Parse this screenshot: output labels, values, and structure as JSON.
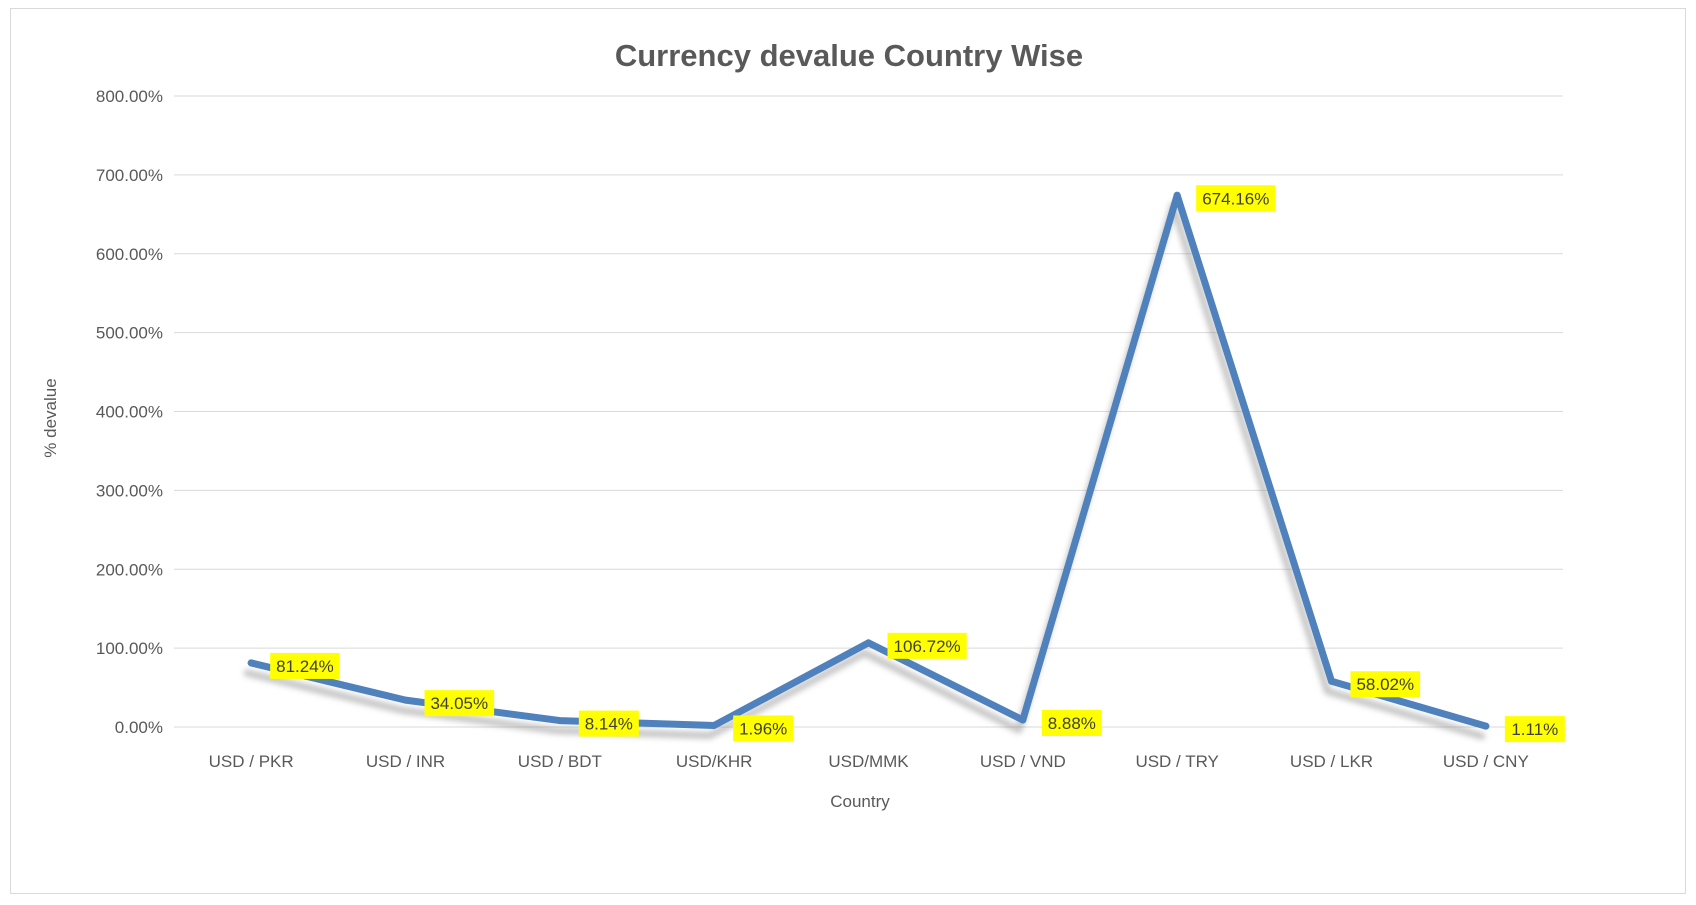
{
  "chart_data": {
    "type": "line",
    "title": "Currency devalue Country Wise",
    "xlabel": "Country",
    "ylabel": "% devalue",
    "categories": [
      "USD / PKR",
      "USD / INR",
      "USD / BDT",
      "USD/KHR",
      "USD/MMK",
      "USD / VND",
      "USD / TRY",
      "USD / LKR",
      "USD / CNY"
    ],
    "series": [
      {
        "values": [
          81.24,
          34.05,
          8.14,
          1.96,
          106.72,
          8.88,
          674.16,
          58.02,
          1.11
        ],
        "data_labels": [
          "81.24%",
          "34.05%",
          "8.14%",
          "1.96%",
          "106.72%",
          "8.88%",
          "674.16%",
          "58.02%",
          "1.11%"
        ]
      }
    ],
    "ylim": [
      0,
      800
    ],
    "yticks": [
      0,
      100,
      200,
      300,
      400,
      500,
      600,
      700,
      800
    ],
    "ytick_labels": [
      "0.00%",
      "100.00%",
      "200.00%",
      "300.00%",
      "400.00%",
      "500.00%",
      "600.00%",
      "700.00%",
      "800.00%"
    ],
    "grid": true,
    "legend": "none",
    "colors": {
      "line": "#4f81bd",
      "data_label_bg": "#ffff00",
      "gridline": "#d9d9d9",
      "text": "#595959"
    }
  }
}
